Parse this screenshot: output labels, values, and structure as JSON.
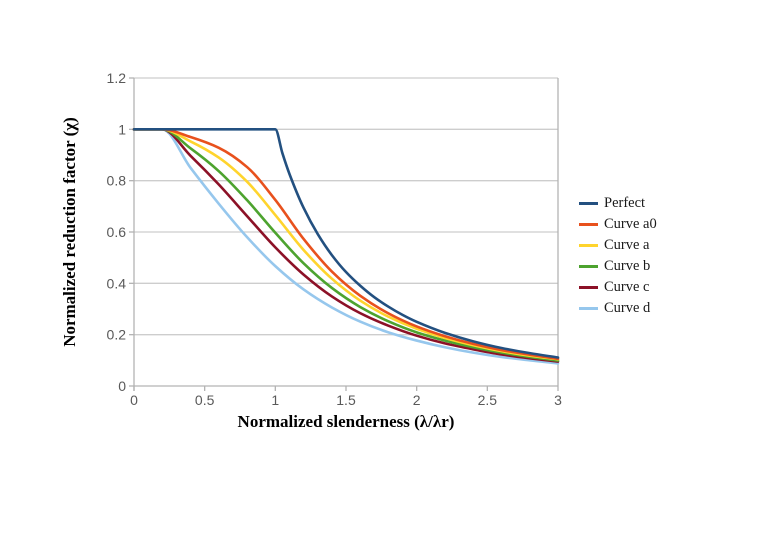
{
  "chart_data": {
    "type": "line",
    "title": "",
    "xlabel": "Normalized slenderness (λ/λr)",
    "ylabel": "Normalized reduction factor (χ)",
    "xlim": [
      0,
      3
    ],
    "ylim": [
      0,
      1.2
    ],
    "x_ticks": [
      0,
      0.5,
      1,
      1.5,
      2,
      2.5,
      3
    ],
    "x_tick_labels": [
      "0",
      "0.5",
      "1",
      "1.5",
      "2",
      "2.5",
      "3"
    ],
    "y_ticks": [
      0,
      0.2,
      0.4,
      0.6,
      0.8,
      1,
      1.2
    ],
    "y_tick_labels": [
      "0",
      "0.2",
      "0.4",
      "0.6",
      "0.8",
      "1",
      "1.2"
    ],
    "grid": "horizontal-only",
    "legend_position": "right",
    "colors": {
      "background": "#ffffff",
      "grid": "#cdcdcd",
      "axis": "#b3b3b3",
      "tick_label": "#595959",
      "title_text": "#000000"
    },
    "series": [
      {
        "name": "Perfect",
        "color": "#235080",
        "points": [
          [
            0,
            1
          ],
          [
            0.2,
            1
          ],
          [
            0.4,
            1
          ],
          [
            0.6,
            1
          ],
          [
            0.8,
            1
          ],
          [
            1,
            1
          ],
          [
            1.05,
            0.907
          ],
          [
            1.1,
            0.826
          ],
          [
            1.2,
            0.694
          ],
          [
            1.3,
            0.592
          ],
          [
            1.4,
            0.51
          ],
          [
            1.5,
            0.444
          ],
          [
            1.6,
            0.391
          ],
          [
            1.7,
            0.346
          ],
          [
            1.8,
            0.309
          ],
          [
            1.9,
            0.277
          ],
          [
            2,
            0.25
          ],
          [
            2.2,
            0.207
          ],
          [
            2.4,
            0.174
          ],
          [
            2.6,
            0.148
          ],
          [
            2.8,
            0.128
          ],
          [
            3,
            0.111
          ]
        ]
      },
      {
        "name": "Curve a0",
        "color": "#e8511d",
        "points": [
          [
            0,
            1
          ],
          [
            0.2,
            1
          ],
          [
            0.4,
            0.97
          ],
          [
            0.6,
            0.928
          ],
          [
            0.8,
            0.853
          ],
          [
            1,
            0.725
          ],
          [
            1.2,
            0.573
          ],
          [
            1.4,
            0.446
          ],
          [
            1.6,
            0.352
          ],
          [
            1.8,
            0.283
          ],
          [
            2,
            0.232
          ],
          [
            2.2,
            0.194
          ],
          [
            2.4,
            0.164
          ],
          [
            2.6,
            0.14
          ],
          [
            2.8,
            0.122
          ],
          [
            3,
            0.106
          ]
        ]
      },
      {
        "name": "Curve a",
        "color": "#ffd42d",
        "points": [
          [
            0,
            1
          ],
          [
            0.2,
            1
          ],
          [
            0.4,
            0.953
          ],
          [
            0.6,
            0.89
          ],
          [
            0.8,
            0.796
          ],
          [
            1,
            0.666
          ],
          [
            1.2,
            0.53
          ],
          [
            1.4,
            0.418
          ],
          [
            1.6,
            0.333
          ],
          [
            1.8,
            0.27
          ],
          [
            2,
            0.223
          ],
          [
            2.2,
            0.187
          ],
          [
            2.4,
            0.159
          ],
          [
            2.6,
            0.136
          ],
          [
            2.8,
            0.118
          ],
          [
            3,
            0.104
          ]
        ]
      },
      {
        "name": "Curve b",
        "color": "#4da32f",
        "points": [
          [
            0,
            1
          ],
          [
            0.2,
            1
          ],
          [
            0.4,
            0.926
          ],
          [
            0.6,
            0.837
          ],
          [
            0.8,
            0.724
          ],
          [
            1,
            0.597
          ],
          [
            1.2,
            0.478
          ],
          [
            1.4,
            0.382
          ],
          [
            1.6,
            0.308
          ],
          [
            1.8,
            0.252
          ],
          [
            2,
            0.209
          ],
          [
            2.2,
            0.177
          ],
          [
            2.4,
            0.151
          ],
          [
            2.6,
            0.13
          ],
          [
            2.8,
            0.113
          ],
          [
            3,
            0.099
          ]
        ]
      },
      {
        "name": "Curve c",
        "color": "#8c1127",
        "points": [
          [
            0,
            1
          ],
          [
            0.2,
            1
          ],
          [
            0.4,
            0.897
          ],
          [
            0.6,
            0.785
          ],
          [
            0.8,
            0.662
          ],
          [
            1,
            0.54
          ],
          [
            1.2,
            0.434
          ],
          [
            1.4,
            0.349
          ],
          [
            1.6,
            0.284
          ],
          [
            1.8,
            0.235
          ],
          [
            2,
            0.196
          ],
          [
            2.2,
            0.166
          ],
          [
            2.4,
            0.143
          ],
          [
            2.6,
            0.123
          ],
          [
            2.8,
            0.108
          ],
          [
            3,
            0.095
          ]
        ]
      },
      {
        "name": "Curve d",
        "color": "#96c7ed",
        "points": [
          [
            0,
            1
          ],
          [
            0.2,
            1
          ],
          [
            0.4,
            0.85
          ],
          [
            0.6,
            0.71
          ],
          [
            0.8,
            0.58
          ],
          [
            1,
            0.467
          ],
          [
            1.2,
            0.376
          ],
          [
            1.4,
            0.306
          ],
          [
            1.6,
            0.251
          ],
          [
            1.8,
            0.209
          ],
          [
            2,
            0.177
          ],
          [
            2.2,
            0.151
          ],
          [
            2.4,
            0.13
          ],
          [
            2.6,
            0.113
          ],
          [
            2.8,
            0.1
          ],
          [
            3,
            0.088
          ]
        ]
      }
    ]
  }
}
